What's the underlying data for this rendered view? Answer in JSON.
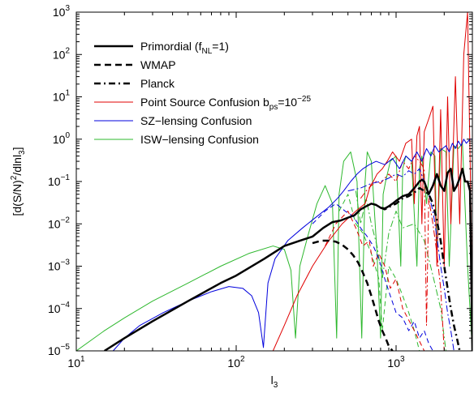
{
  "chart_data": {
    "type": "line",
    "xscale": "log",
    "yscale": "log",
    "xlim": [
      10,
      3000
    ],
    "ylim": [
      1e-05,
      1000
    ],
    "x_ticks": [
      {
        "value": 10,
        "base": "10",
        "exp": "1"
      },
      {
        "value": 100,
        "base": "10",
        "exp": "2"
      },
      {
        "value": 1000,
        "base": "10",
        "exp": "3"
      }
    ],
    "y_ticks": [
      {
        "value": 1e-05,
        "base": "10",
        "exp": "−5"
      },
      {
        "value": 0.0001,
        "base": "10",
        "exp": "−4"
      },
      {
        "value": 0.001,
        "base": "10",
        "exp": "−3"
      },
      {
        "value": 0.01,
        "base": "10",
        "exp": "−2"
      },
      {
        "value": 0.1,
        "base": "10",
        "exp": "−1"
      },
      {
        "value": 1,
        "base": "10",
        "exp": "0"
      },
      {
        "value": 10,
        "base": "10",
        "exp": "1"
      },
      {
        "value": 100,
        "base": "10",
        "exp": "2"
      },
      {
        "value": 1000,
        "base": "10",
        "exp": "3"
      }
    ],
    "xlabel": {
      "main": "l",
      "sub": "3"
    },
    "ylabel": {
      "p1": "[d(S/N)",
      "sup": "2",
      "p2": "/dlnl",
      "sub": "3",
      "p3": "]"
    },
    "legend": {
      "position": "top-left",
      "entries": [
        {
          "parts": [
            {
              "t": "Primordial (f"
            },
            {
              "t": "NL",
              "sub": true
            },
            {
              "t": "=1)"
            }
          ],
          "color": "#000000",
          "width": 2.5,
          "dash": ""
        },
        {
          "parts": [
            {
              "t": "WMAP"
            }
          ],
          "color": "#000000",
          "width": 2.5,
          "dash": "8,5"
        },
        {
          "parts": [
            {
              "t": "Planck"
            }
          ],
          "color": "#000000",
          "width": 2.5,
          "dash": "8,4,2,4"
        },
        {
          "parts": [
            {
              "t": "Point Source Confusion b"
            },
            {
              "t": "ps",
              "sub": true
            },
            {
              "t": "=10"
            },
            {
              "t": "−25",
              "sup": true
            }
          ],
          "color": "#e00000",
          "width": 1,
          "dash": ""
        },
        {
          "parts": [
            {
              "t": "SZ−lensing Confusion"
            }
          ],
          "color": "#0000dd",
          "width": 1,
          "dash": ""
        },
        {
          "parts": [
            {
              "t": "ISW−lensing Confusion"
            }
          ],
          "color": "#2eb82e",
          "width": 1,
          "dash": ""
        }
      ]
    },
    "series": [
      {
        "key": "isw_solid",
        "color": "#2eb82e",
        "width": 1,
        "dash": "",
        "x": [
          10,
          15,
          20,
          30,
          50,
          80,
          120,
          170,
          200,
          220,
          235,
          250,
          280,
          320,
          360,
          400,
          425,
          440,
          470,
          520,
          570,
          610,
          640,
          660,
          700,
          760,
          800,
          830,
          860,
          920,
          1000,
          1070,
          1100,
          1150,
          1250,
          1350,
          1400,
          1450,
          1550,
          1650,
          1750,
          1800,
          1900,
          2050,
          2150,
          2300,
          2450,
          2600,
          2800,
          3000
        ],
        "y": [
          1e-05,
          3e-05,
          6e-05,
          0.00015,
          0.0004,
          0.001,
          0.002,
          0.003,
          0.0025,
          0.0008,
          2e-05,
          0.001,
          0.005,
          0.03,
          0.08,
          0.03,
          2e-05,
          0.05,
          0.3,
          0.5,
          0.1,
          2e-05,
          0.1,
          0.5,
          0.3,
          0.002,
          2e-05,
          0.05,
          0.1,
          0.3,
          0.4,
          0.001,
          0.2,
          0.4,
          0.3,
          0.001,
          0.2,
          0.4,
          0.03,
          0.5,
          0.4,
          0.002,
          0.6,
          0.5,
          0.001,
          0.7,
          0.6,
          0.8,
          0.001,
          1e-05
        ]
      },
      {
        "key": "isw_dashed",
        "color": "#2eb82e",
        "width": 1,
        "dash": "6,4",
        "x": [
          440,
          500,
          560,
          620,
          700,
          780,
          820,
          900,
          1000,
          1100,
          1200,
          1300,
          1400
        ],
        "y": [
          0.02,
          0.05,
          0.01,
          0.006,
          0.002,
          0.0005,
          3e-05,
          0.001,
          0.0005,
          0.0002,
          8e-05,
          3e-05,
          1e-05
        ]
      },
      {
        "key": "isw_dashdot",
        "color": "#2eb82e",
        "width": 1,
        "dash": "8,3,2,3",
        "x": [
          560,
          600,
          650,
          700,
          760,
          820,
          900,
          1000,
          1100,
          1300,
          1500,
          1700,
          1900,
          2050
        ],
        "y": [
          0.06,
          0.01,
          0.04,
          0.01,
          0.003,
          0.0005,
          0.006,
          0.02,
          0.008,
          0.01,
          0.004,
          0.0006,
          0.0001,
          1e-05
        ]
      },
      {
        "key": "ps_solid",
        "color": "#e00000",
        "width": 1,
        "dash": "",
        "x": [
          170,
          200,
          240,
          300,
          380,
          460,
          560,
          640,
          690,
          720,
          760,
          820,
          880,
          950,
          1050,
          1150,
          1250,
          1300,
          1350,
          1400,
          1450,
          1500,
          1600,
          1700,
          1800,
          1900,
          2000,
          2100,
          2200,
          2350,
          2500,
          2650,
          2800,
          2950,
          3000
        ],
        "y": [
          1e-05,
          4e-05,
          0.0002,
          0.001,
          0.004,
          0.01,
          0.02,
          0.03,
          0.08,
          0.1,
          0.15,
          0.2,
          0.3,
          0.5,
          0.3,
          0.8,
          1,
          0.03,
          1.2,
          2,
          0.01,
          1.5,
          3,
          6,
          0.001,
          5,
          0.001,
          10,
          0.01,
          30,
          0.01,
          100,
          1000,
          0.01,
          1e-05
        ]
      },
      {
        "key": "ps_dashed",
        "color": "#e00000",
        "width": 1,
        "dash": "6,4",
        "x": [
          360,
          420,
          500,
          560,
          620,
          680,
          720,
          780,
          850,
          920,
          1000,
          1100,
          1300,
          1500
        ],
        "y": [
          0.003,
          0.01,
          0.02,
          0.008,
          0.003,
          0.004,
          0.001,
          0.002,
          0.001,
          0.0003,
          0.0005,
          0.0001,
          3e-05,
          1e-05
        ]
      },
      {
        "key": "ps_dashdot",
        "color": "#e00000",
        "width": 1,
        "dash": "8,3,2,3",
        "x": [
          600,
          650,
          700,
          750,
          800,
          850,
          900,
          1000,
          1100,
          1200,
          1300,
          1400,
          1500,
          1550,
          1600,
          1700,
          1800,
          1900,
          2000
        ],
        "y": [
          0.04,
          0.06,
          0.08,
          0.1,
          0.09,
          0.12,
          0.15,
          0.1,
          0.3,
          0.2,
          0.4,
          0.3,
          0.2,
          4e-05,
          0.04,
          0.01,
          0.002,
          0.0003,
          1e-05
        ]
      },
      {
        "key": "sz_solid",
        "color": "#0000dd",
        "width": 1,
        "dash": "",
        "x": [
          17,
          20,
          25,
          35,
          50,
          70,
          90,
          110,
          125,
          138,
          148,
          158,
          175,
          210,
          260,
          320,
          380,
          430,
          470,
          520,
          570,
          620,
          680,
          750,
          850,
          950,
          1050,
          1150,
          1250,
          1350,
          1450,
          1550,
          1650,
          1750,
          1850,
          1950,
          2050,
          2150,
          2250,
          2350,
          2450,
          2550,
          2650,
          2750,
          2900,
          3000
        ],
        "y": [
          1e-05,
          2e-05,
          4e-05,
          8e-05,
          0.00015,
          0.00025,
          0.00033,
          0.0003,
          0.0002,
          8e-05,
          1.2e-05,
          0.0004,
          0.0015,
          0.004,
          0.008,
          0.015,
          0.025,
          0.04,
          0.06,
          0.1,
          0.15,
          0.2,
          0.25,
          0.3,
          0.25,
          0.35,
          0.2,
          0.4,
          0.3,
          0.5,
          0.3,
          0.6,
          0.4,
          0.7,
          0.5,
          0.6,
          0.7,
          0.5,
          0.8,
          0.6,
          0.9,
          0.7,
          1,
          0.8,
          1,
          1
        ]
      },
      {
        "key": "sz_dashed",
        "color": "#0000dd",
        "width": 1,
        "dash": "6,4",
        "x": [
          300,
          360,
          420,
          480,
          540,
          600,
          660,
          720,
          780,
          850,
          920,
          1000,
          1100,
          1200,
          1300,
          1400,
          1500,
          1600,
          1700
        ],
        "y": [
          0.01,
          0.02,
          0.03,
          0.02,
          0.015,
          0.008,
          0.005,
          0.003,
          0.0015,
          0.0005,
          0.0002,
          8e-05,
          6e-05,
          3e-05,
          5e-05,
          2e-05,
          3e-05,
          1.5e-05,
          1e-05
        ]
      },
      {
        "key": "sz_dashdot",
        "color": "#0000dd",
        "width": 1,
        "dash": "8,3,2,3",
        "x": [
          500,
          600,
          700,
          800,
          900,
          1000,
          1100,
          1200,
          1300,
          1400,
          1500,
          1600,
          1700,
          1800,
          1900,
          2000,
          2100,
          2200,
          2300
        ],
        "y": [
          0.06,
          0.07,
          0.09,
          0.1,
          0.12,
          0.15,
          0.13,
          0.18,
          0.15,
          0.2,
          0.1,
          0.05,
          0.02,
          0.005,
          0.001,
          0.0003,
          8e-05,
          3e-05,
          1e-05
        ]
      },
      {
        "key": "primordial",
        "color": "#000000",
        "width": 2.5,
        "dash": "",
        "x": [
          15,
          20,
          30,
          50,
          80,
          100,
          150,
          200,
          250,
          300,
          350,
          400,
          450,
          500,
          550,
          600,
          650,
          700,
          750,
          800,
          850,
          900,
          950,
          1000,
          1100,
          1200,
          1300,
          1400,
          1450,
          1500,
          1550,
          1600,
          1700,
          1800,
          1900,
          2000,
          2100,
          2200,
          2300,
          2400,
          2500,
          2600,
          2700,
          2800,
          2900,
          3000
        ],
        "y": [
          1e-05,
          2e-05,
          5e-05,
          0.00015,
          0.0004,
          0.0006,
          0.0015,
          0.003,
          0.004,
          0.005,
          0.008,
          0.011,
          0.012,
          0.014,
          0.016,
          0.022,
          0.026,
          0.03,
          0.028,
          0.024,
          0.023,
          0.026,
          0.03,
          0.035,
          0.045,
          0.05,
          0.07,
          0.1,
          0.11,
          0.1,
          0.07,
          0.05,
          0.08,
          0.15,
          0.08,
          0.06,
          0.16,
          0.2,
          0.06,
          0.08,
          0.12,
          0.2,
          0.1,
          0.1,
          0.06,
          1e-05
        ]
      },
      {
        "key": "wmap",
        "color": "#000000",
        "width": 2.5,
        "dash": "8,5",
        "x": [
          300,
          340,
          380,
          420,
          460,
          500,
          540,
          580,
          620,
          660,
          700,
          740,
          780,
          820,
          860,
          900,
          950
        ],
        "y": [
          0.0035,
          0.004,
          0.004,
          0.0038,
          0.0032,
          0.0025,
          0.0018,
          0.0012,
          0.0007,
          0.0004,
          0.0002,
          0.0001,
          5e-05,
          3e-05,
          2e-05,
          1.3e-05,
          1e-05
        ]
      },
      {
        "key": "planck",
        "color": "#000000",
        "width": 2.5,
        "dash": "8,4,2,4",
        "x": [
          800,
          850,
          900,
          1000,
          1100,
          1200,
          1300,
          1400,
          1500,
          1600,
          1700,
          1800,
          1900,
          2000,
          2100,
          2200,
          2300,
          2400,
          2500
        ],
        "y": [
          0.024,
          0.022,
          0.025,
          0.03,
          0.04,
          0.045,
          0.055,
          0.07,
          0.06,
          0.05,
          0.03,
          0.012,
          0.004,
          0.001,
          0.0003,
          0.0001,
          4e-05,
          2e-05,
          1e-05
        ]
      }
    ]
  }
}
